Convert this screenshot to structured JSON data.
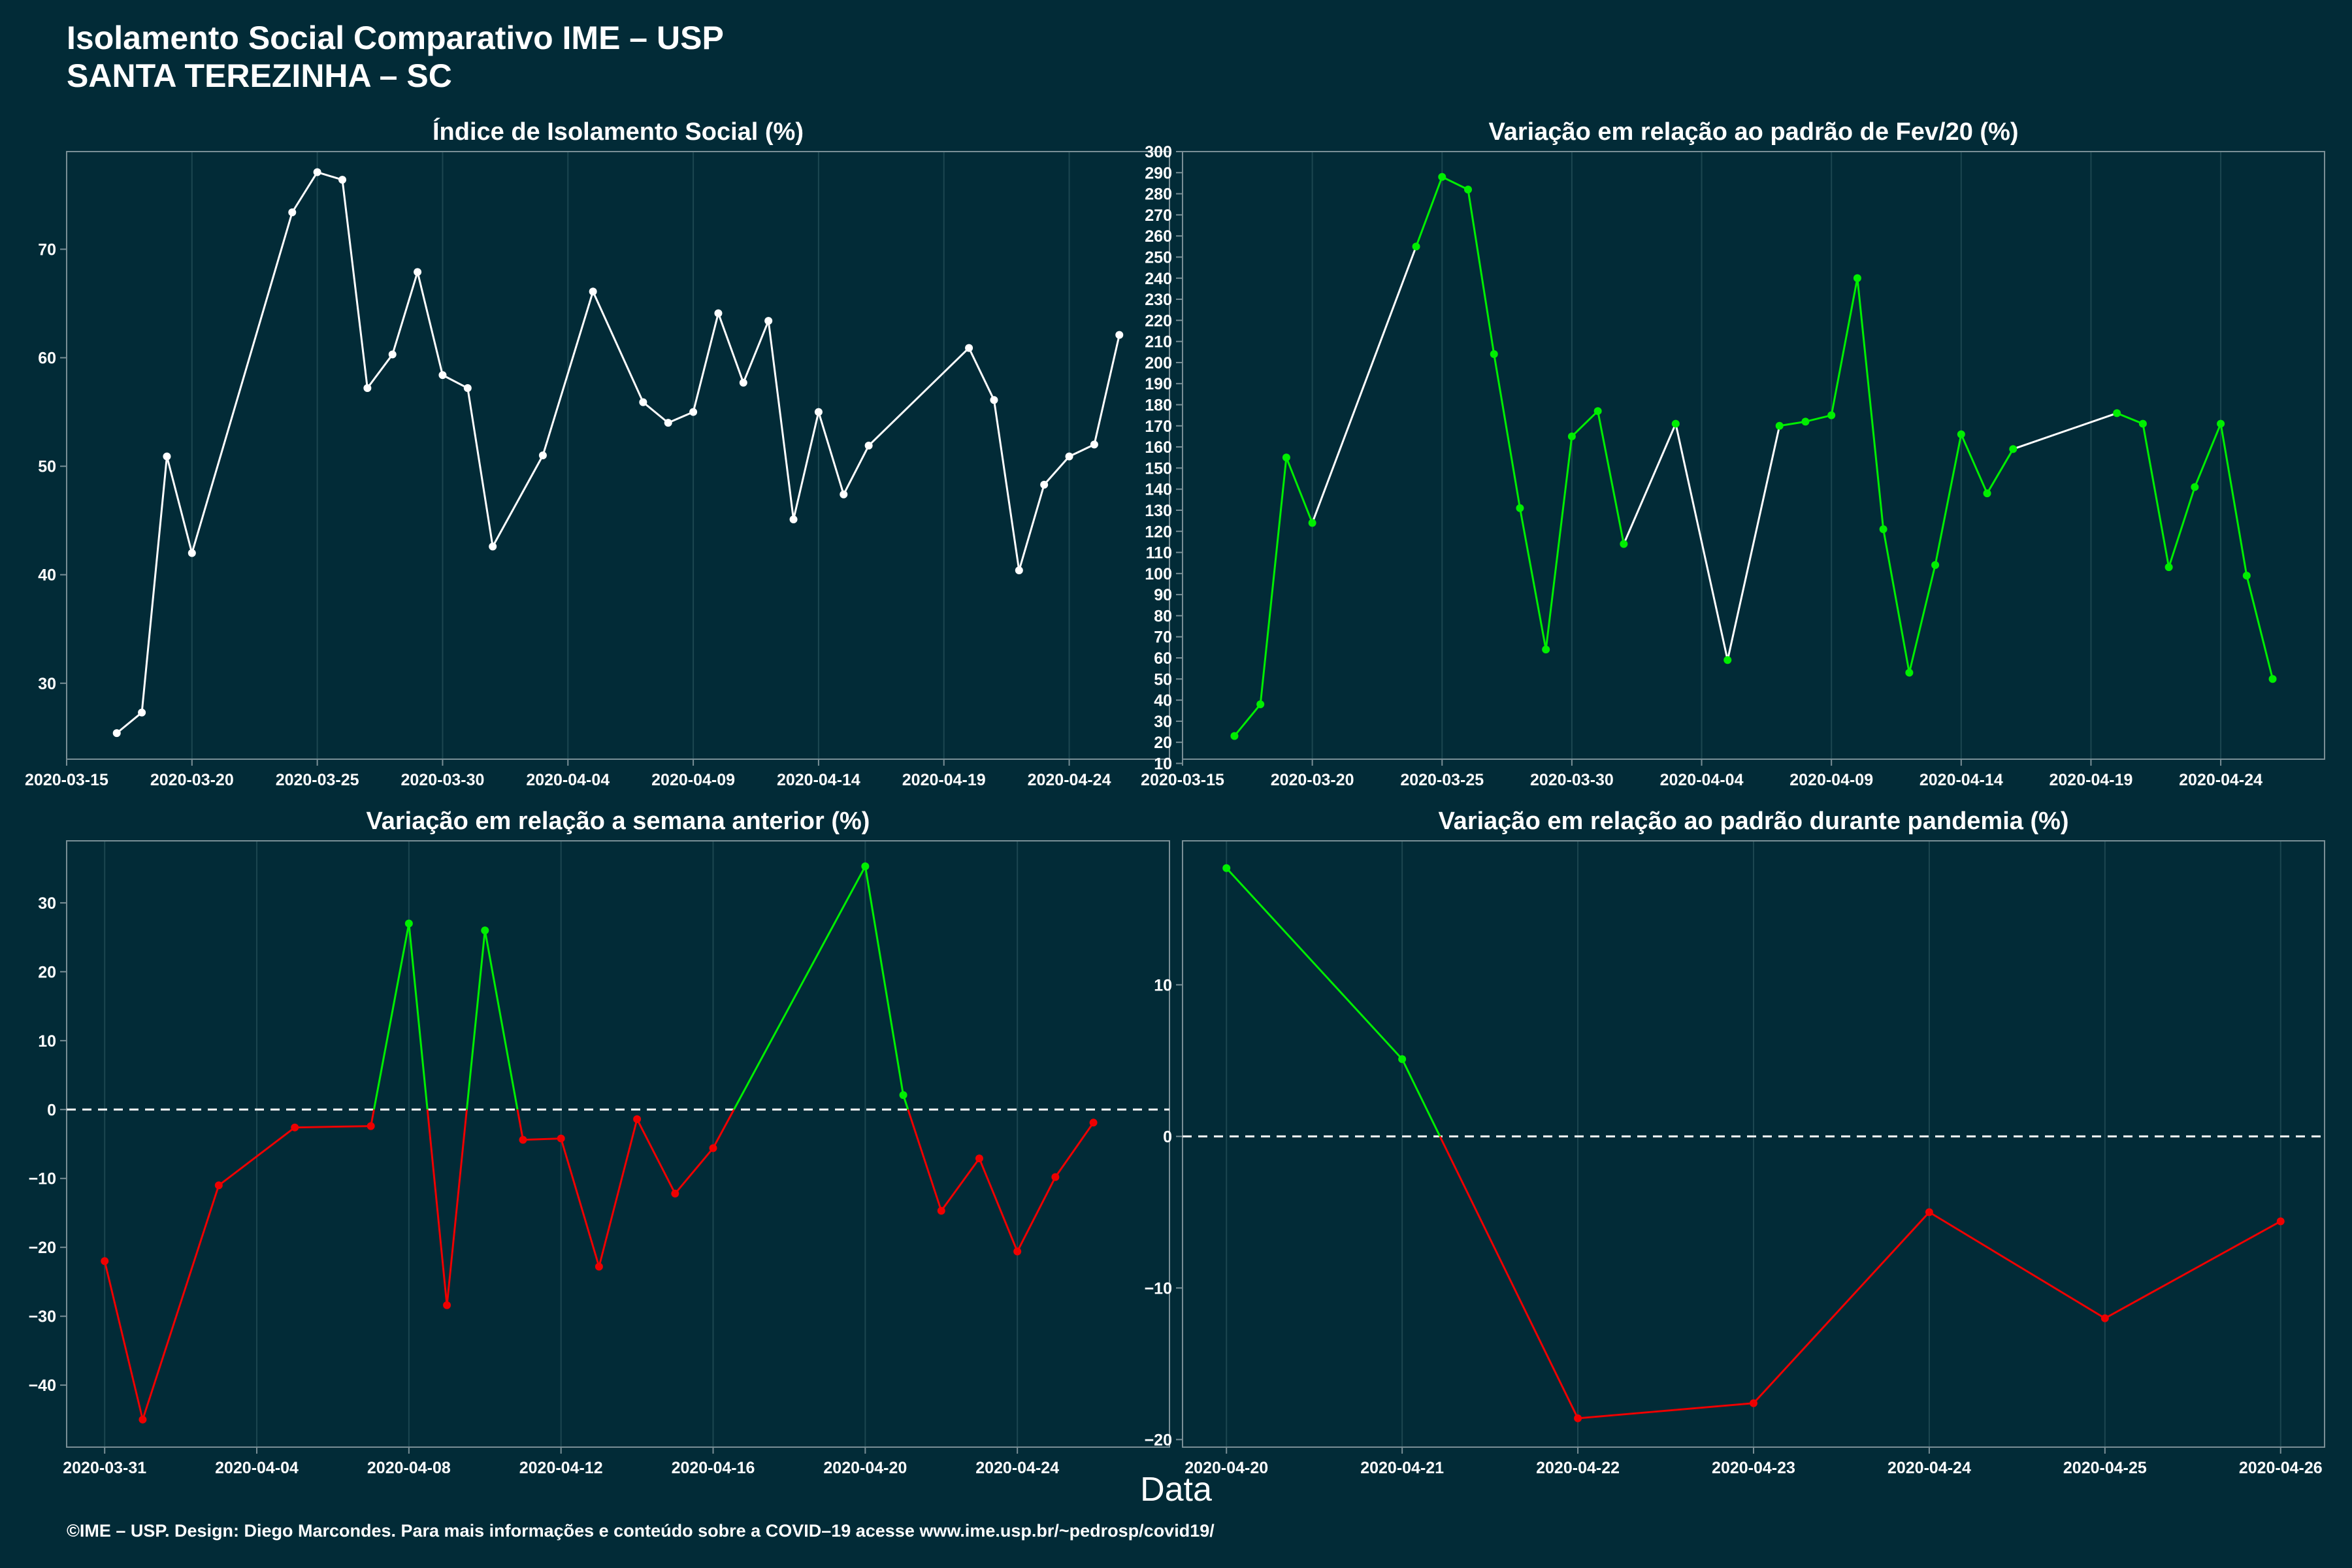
{
  "header": {
    "title_line1": "Isolamento Social Comparativo IME – USP",
    "title_line2": "SANTA TEREZINHA – SC"
  },
  "xlabel": "Data",
  "footer": "©IME – USP. Design: Diego Marcondes. Para mais informações e conteúdo sobre a COVID–19 acesse www.ime.usp.br/~pedrosp/covid19/",
  "colors": {
    "background": "#022b37",
    "neutral": "#ffffff",
    "positive": "#00ee00",
    "negative": "#ee0000"
  },
  "chart_data": [
    {
      "id": "isolamento",
      "type": "line",
      "title": "Índice de Isolamento Social (%)",
      "x_type": "date",
      "xlim": [
        "2020-03-15",
        "2020-04-28"
      ],
      "ylim": [
        23,
        79
      ],
      "xticks": [
        "2020-03-15",
        "2020-03-20",
        "2020-03-25",
        "2020-03-30",
        "2020-04-04",
        "2020-04-09",
        "2020-04-14",
        "2020-04-19",
        "2020-04-24"
      ],
      "yticks": [
        30,
        40,
        50,
        60,
        70
      ],
      "color_mode": "white",
      "x": [
        "2020-03-17",
        "2020-03-18",
        "2020-03-19",
        "2020-03-20",
        "2020-03-24",
        "2020-03-25",
        "2020-03-26",
        "2020-03-27",
        "2020-03-28",
        "2020-03-29",
        "2020-03-30",
        "2020-03-31",
        "2020-04-01",
        "2020-04-03",
        "2020-04-05",
        "2020-04-07",
        "2020-04-08",
        "2020-04-09",
        "2020-04-10",
        "2020-04-11",
        "2020-04-12",
        "2020-04-13",
        "2020-04-14",
        "2020-04-15",
        "2020-04-16",
        "2020-04-20",
        "2020-04-21",
        "2020-04-22",
        "2020-04-23",
        "2020-04-24",
        "2020-04-25",
        "2020-04-26"
      ],
      "y": [
        25.4,
        27.3,
        50.9,
        42.0,
        73.4,
        77.1,
        76.4,
        57.2,
        60.3,
        67.9,
        58.4,
        57.2,
        42.6,
        51.0,
        66.1,
        55.9,
        54.0,
        55.0,
        64.1,
        57.7,
        63.4,
        45.1,
        55.0,
        47.4,
        51.9,
        60.9,
        56.1,
        40.4,
        48.3,
        50.9,
        52.0,
        62.1
      ]
    },
    {
      "id": "variacao_fev",
      "type": "line",
      "title": "Variação em relação ao padrão de Fev/20 (%)",
      "x_type": "date",
      "xlim": [
        "2020-03-15",
        "2020-04-28"
      ],
      "ylim": [
        12,
        300
      ],
      "xticks": [
        "2020-03-15",
        "2020-03-20",
        "2020-03-25",
        "2020-03-30",
        "2020-04-04",
        "2020-04-09",
        "2020-04-14",
        "2020-04-19",
        "2020-04-24"
      ],
      "yticks": [
        10,
        20,
        30,
        40,
        50,
        60,
        70,
        80,
        90,
        100,
        110,
        120,
        130,
        140,
        150,
        160,
        170,
        180,
        190,
        200,
        210,
        220,
        230,
        240,
        250,
        260,
        270,
        280,
        290,
        300
      ],
      "color_mode": "gap",
      "x": [
        "2020-03-17",
        "2020-03-18",
        "2020-03-19",
        "2020-03-20",
        "2020-03-24",
        "2020-03-25",
        "2020-03-26",
        "2020-03-27",
        "2020-03-28",
        "2020-03-29",
        "2020-03-30",
        "2020-03-31",
        "2020-04-01",
        "2020-04-03",
        "2020-04-05",
        "2020-04-07",
        "2020-04-08",
        "2020-04-09",
        "2020-04-10",
        "2020-04-11",
        "2020-04-12",
        "2020-04-13",
        "2020-04-14",
        "2020-04-15",
        "2020-04-16",
        "2020-04-20",
        "2020-04-21",
        "2020-04-22",
        "2020-04-23",
        "2020-04-24",
        "2020-04-25",
        "2020-04-26"
      ],
      "y": [
        23,
        38,
        155,
        124,
        255,
        288,
        282,
        204,
        131,
        64,
        165,
        177,
        114,
        171,
        59,
        170,
        172,
        175,
        240,
        121,
        53,
        104,
        166,
        138,
        159,
        176,
        171,
        103,
        141,
        171,
        99,
        50
      ]
    },
    {
      "id": "semana_anterior",
      "type": "line",
      "title": "Variação em relação a semana anterior (%)",
      "x_type": "date",
      "xlim": [
        "2020-03-30",
        "2020-04-28"
      ],
      "ylim": [
        -49,
        39
      ],
      "xticks": [
        "2020-03-31",
        "2020-04-04",
        "2020-04-08",
        "2020-04-12",
        "2020-04-16",
        "2020-04-20",
        "2020-04-24"
      ],
      "yticks": [
        -40,
        -30,
        -20,
        -10,
        0,
        10,
        20,
        30
      ],
      "zero_line": true,
      "color_mode": "sign",
      "x": [
        "2020-03-31",
        "2020-04-01",
        "2020-04-03",
        "2020-04-05",
        "2020-04-07",
        "2020-04-08",
        "2020-04-09",
        "2020-04-10",
        "2020-04-11",
        "2020-04-12",
        "2020-04-13",
        "2020-04-14",
        "2020-04-15",
        "2020-04-16",
        "2020-04-20",
        "2020-04-21",
        "2020-04-22",
        "2020-04-23",
        "2020-04-24",
        "2020-04-25",
        "2020-04-26"
      ],
      "y": [
        -22.0,
        -45.0,
        -11.0,
        -2.6,
        -2.4,
        27.0,
        -28.4,
        26.0,
        -4.4,
        -4.2,
        -22.8,
        -1.4,
        -12.2,
        -5.6,
        35.3,
        2.1,
        -14.7,
        -7.1,
        -20.6,
        -9.8,
        -1.9
      ]
    },
    {
      "id": "padrao_pandemia",
      "type": "line",
      "title": "Variação em relação ao padrão durante pandemia (%)",
      "x_type": "date",
      "xlim": [
        "2020-04-19.75",
        "2020-04-26.25"
      ],
      "ylim": [
        -20.5,
        19.5
      ],
      "xticks": [
        "2020-04-20",
        "2020-04-21",
        "2020-04-22",
        "2020-04-23",
        "2020-04-24",
        "2020-04-25",
        "2020-04-26"
      ],
      "yticks": [
        -20,
        -10,
        0,
        10
      ],
      "zero_line": true,
      "color_mode": "sign",
      "x": [
        "2020-04-20",
        "2020-04-21",
        "2020-04-22",
        "2020-04-23",
        "2020-04-24",
        "2020-04-25",
        "2020-04-26"
      ],
      "y": [
        17.7,
        5.1,
        -18.6,
        -17.6,
        -5.0,
        -12.0,
        -5.6
      ]
    }
  ]
}
